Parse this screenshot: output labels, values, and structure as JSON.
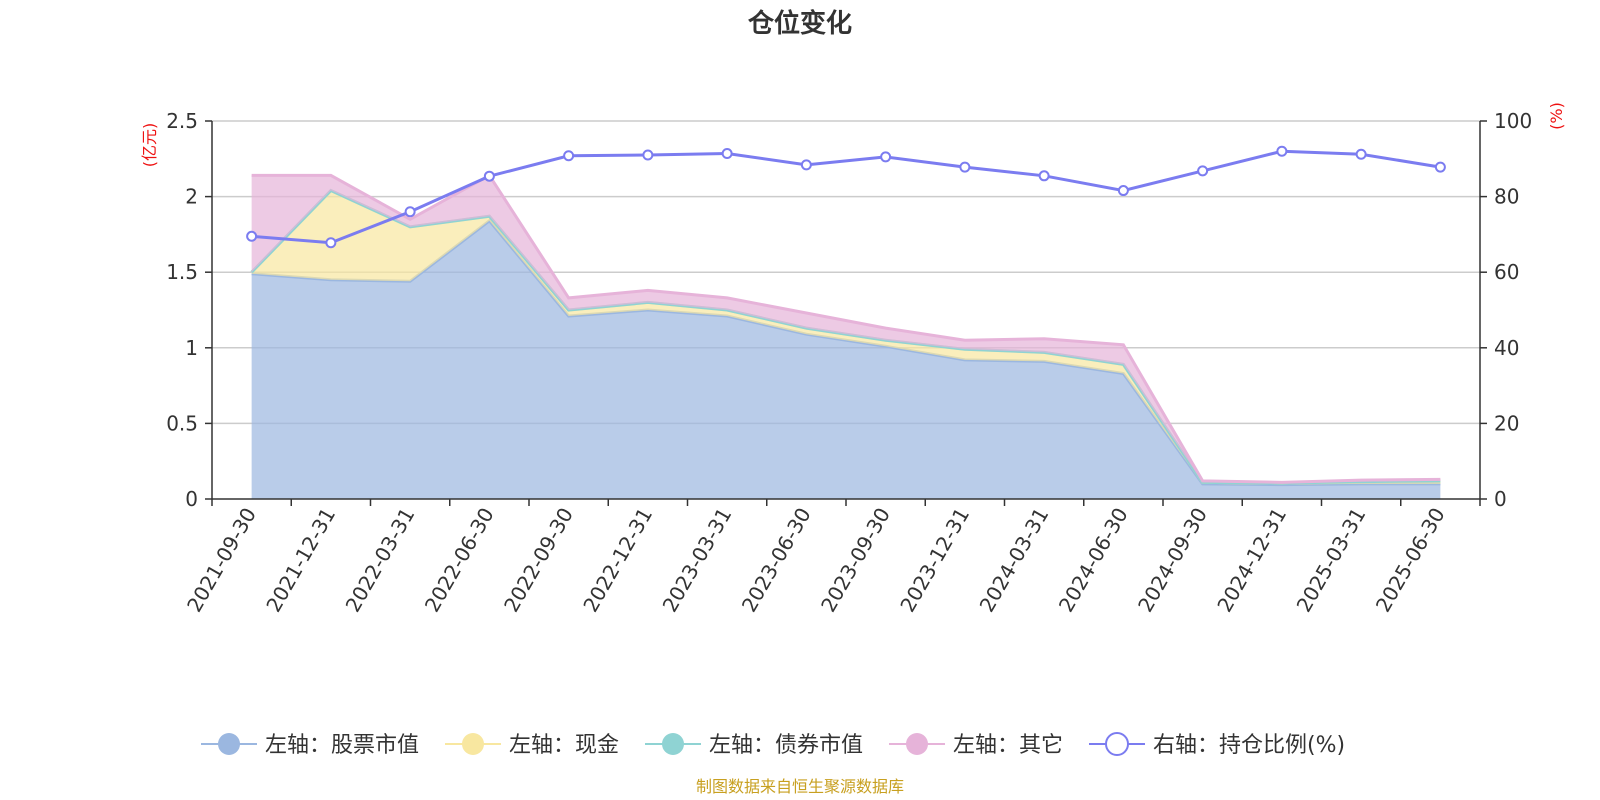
{
  "chart_data": {
    "type": "area",
    "title": "仓位变化",
    "left_axis_unit": "(亿元)",
    "right_axis_unit": "(%)",
    "categories": [
      "2021-09-30",
      "2021-12-31",
      "2022-03-31",
      "2022-06-30",
      "2022-09-30",
      "2022-12-31",
      "2023-03-31",
      "2023-06-30",
      "2023-09-30",
      "2023-12-31",
      "2024-03-31",
      "2024-06-30",
      "2024-09-30",
      "2024-12-31",
      "2025-03-31",
      "2025-06-30"
    ],
    "left_ylim": [
      0,
      2.5
    ],
    "left_ticks": [
      "0",
      "0.5",
      "1",
      "1.5",
      "2",
      "2.5"
    ],
    "right_ylim": [
      0,
      100
    ],
    "right_ticks": [
      "0",
      "20",
      "40",
      "60",
      "80",
      "100"
    ],
    "stacked": true,
    "series": [
      {
        "name": "左轴：股票市值",
        "axis": "left",
        "color": "#9bb7e0",
        "values": [
          1.49,
          1.45,
          1.44,
          1.84,
          1.21,
          1.25,
          1.21,
          1.09,
          1.01,
          0.92,
          0.91,
          0.83,
          0.1,
          0.095,
          0.1,
          0.1
        ]
      },
      {
        "name": "左轴：现金",
        "axis": "left",
        "color": "#f8e7a0",
        "values": [
          0.01,
          0.59,
          0.36,
          0.03,
          0.04,
          0.05,
          0.04,
          0.04,
          0.04,
          0.07,
          0.06,
          0.06,
          0.01,
          0.01,
          0.015,
          0.02
        ]
      },
      {
        "name": "左轴：债券市值",
        "axis": "left",
        "color": "#8fd3d3",
        "values": [
          0,
          0,
          0,
          0,
          0,
          0,
          0,
          0,
          0,
          0,
          0,
          0,
          0,
          0,
          0,
          0
        ]
      },
      {
        "name": "左轴：其它",
        "axis": "left",
        "color": "#e6b3d9",
        "values": [
          0.64,
          0.1,
          0.05,
          0.27,
          0.08,
          0.08,
          0.08,
          0.1,
          0.08,
          0.06,
          0.09,
          0.13,
          0.01,
          0.005,
          0.01,
          0.01
        ]
      },
      {
        "name": "右轴：持仓比例(%)",
        "axis": "right",
        "color": "#7b7cf0",
        "type": "line",
        "values": [
          69.5,
          67.8,
          76.0,
          85.4,
          90.8,
          91.0,
          91.4,
          88.4,
          90.5,
          87.8,
          85.5,
          81.6,
          86.8,
          92.0,
          91.2,
          87.8
        ]
      }
    ],
    "grid": true,
    "legend_position": "bottom"
  },
  "source_note": "制图数据来自恒生聚源数据库"
}
